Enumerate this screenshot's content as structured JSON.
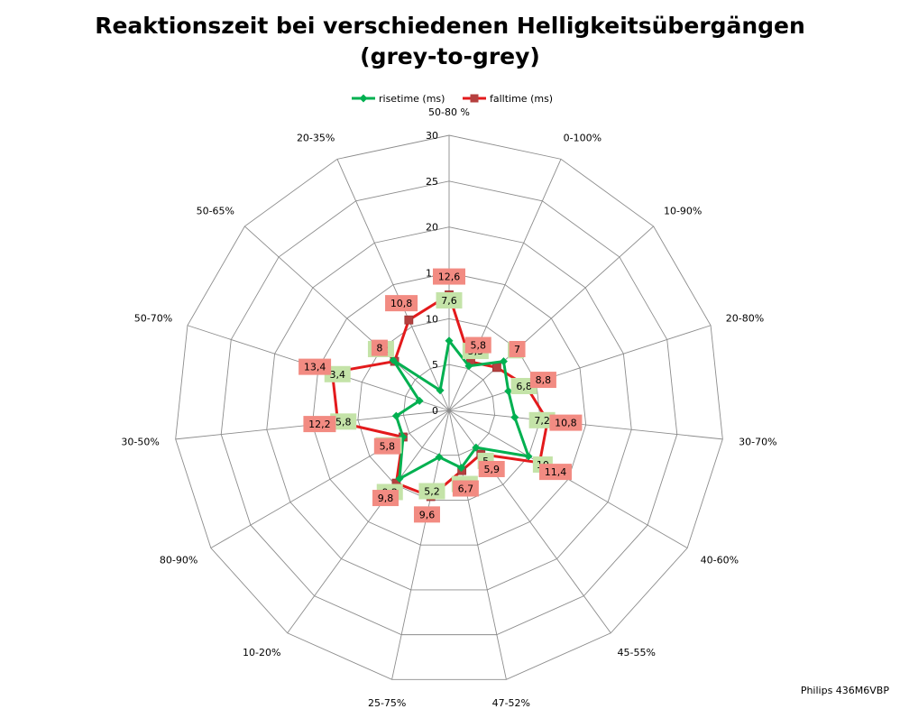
{
  "chart_data": {
    "type": "radar",
    "title": "Reaktionszeit bei verschiedenen Helligkeitsübergängen",
    "subtitle": "(grey-to-grey)",
    "categories": [
      "50-80 %",
      "0-100%",
      "10-90%",
      "20-80%",
      "30-70%",
      "40-60%",
      "45-55%",
      "47-52%",
      "25-75%",
      "10-20%",
      "80-90%",
      "30-50%",
      "50-70%",
      "50-65%",
      "20-35%"
    ],
    "axis_ticks": [
      "0",
      "5",
      "10",
      "15",
      "20",
      "25",
      "30"
    ],
    "rmin": 0,
    "rmax": 30,
    "grid": true,
    "legend_position": "top",
    "series": [
      {
        "name": "risetime (ms)",
        "color": "#00b050",
        "marker": "diamond",
        "label_color": "#c4e3a8",
        "values": [
          7.6,
          5.3,
          8,
          6.8,
          7.2,
          10,
          5,
          6.4,
          5.2,
          9.2,
          5.8,
          5.8,
          3.4,
          8.2,
          2.4
        ],
        "labels": [
          "7,6",
          "5,3",
          "8",
          "6,8",
          "7,2",
          "10",
          "5",
          "6,4",
          "5,2",
          "9,2",
          "5,8",
          "5,8",
          "3,4",
          "8,2",
          ""
        ]
      },
      {
        "name": "falltime (ms)",
        "color": "#e31a1c",
        "marker": "square",
        "label_color": "#f28b82",
        "values": [
          12.6,
          5.8,
          7,
          8.8,
          10.8,
          11.4,
          5.9,
          6.7,
          9.6,
          9.8,
          5.8,
          12.2,
          13.4,
          8,
          10.8
        ],
        "labels": [
          "12,6",
          "5,8",
          "7",
          "8,8",
          "10,8",
          "11,4",
          "5,9",
          "6,7",
          "9,6",
          "9,8",
          "5,8",
          "12,2",
          "13,4",
          "8",
          "10,8"
        ]
      }
    ]
  },
  "footer": "Philips 436M6VBP"
}
